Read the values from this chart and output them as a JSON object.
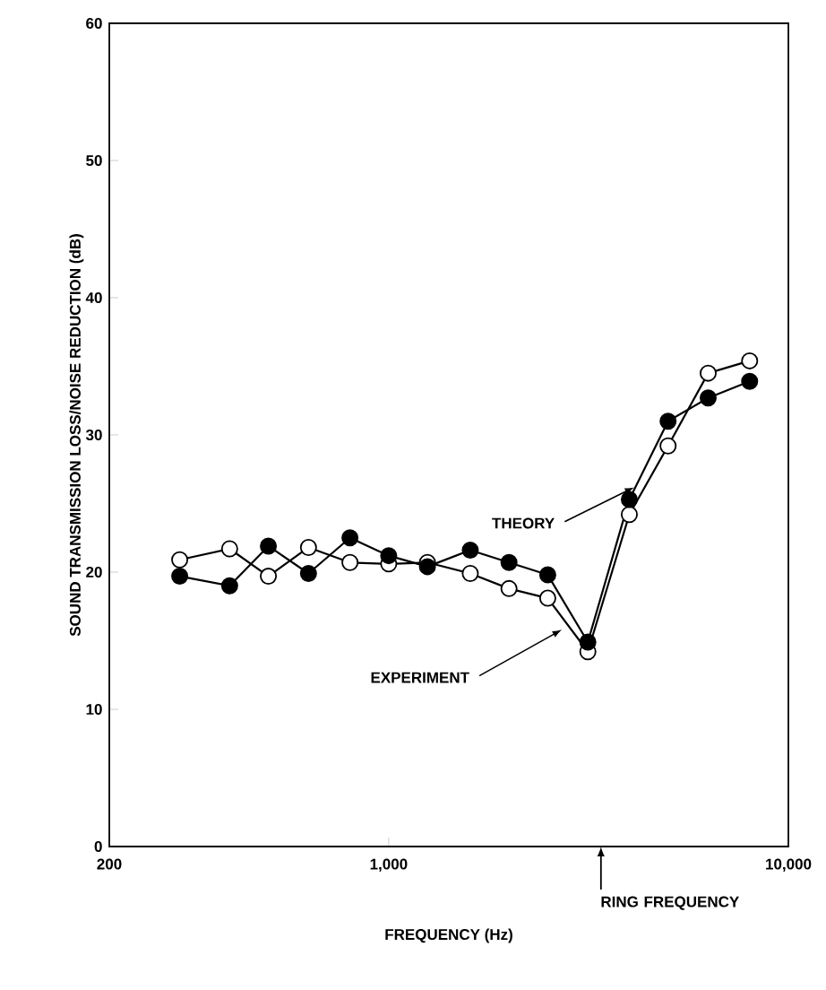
{
  "chart_data": {
    "type": "line",
    "xlabel": "FREQUENCY (Hz)",
    "ylabel": "SOUND TRANSMISSION LOSS/NOISE REDUCTION (dB)",
    "x": [
      300,
      400,
      500,
      630,
      800,
      1000,
      1250,
      1600,
      2000,
      2500,
      3150,
      4000,
      5000,
      6300,
      8000
    ],
    "series": [
      {
        "name": "THEORY",
        "color": "#ffffff",
        "values": [
          20.9,
          21.7,
          19.7,
          21.8,
          20.7,
          20.6,
          20.7,
          19.9,
          18.8,
          18.1,
          14.2,
          24.2,
          29.2,
          34.5,
          35.4
        ]
      },
      {
        "name": "EXPERIMENT",
        "color": "#000000",
        "values": [
          19.7,
          19.0,
          21.9,
          19.9,
          22.5,
          21.2,
          20.4,
          21.6,
          20.7,
          19.8,
          14.9,
          25.3,
          31.0,
          32.7,
          33.9
        ]
      }
    ],
    "annotations": [
      "RING FREQUENCY"
    ],
    "log": "x",
    "xlim": [
      200,
      10000
    ],
    "xticks": [
      200,
      {
        "value": 1000,
        "label": "1,000"
      },
      {
        "value": 10000,
        "label": "10,000"
      }
    ],
    "ylim": [
      0,
      60
    ],
    "yticks": [
      0,
      10,
      20,
      30,
      40,
      50,
      60
    ],
    "marker": "circle",
    "line_style": "solid",
    "grid": false
  }
}
